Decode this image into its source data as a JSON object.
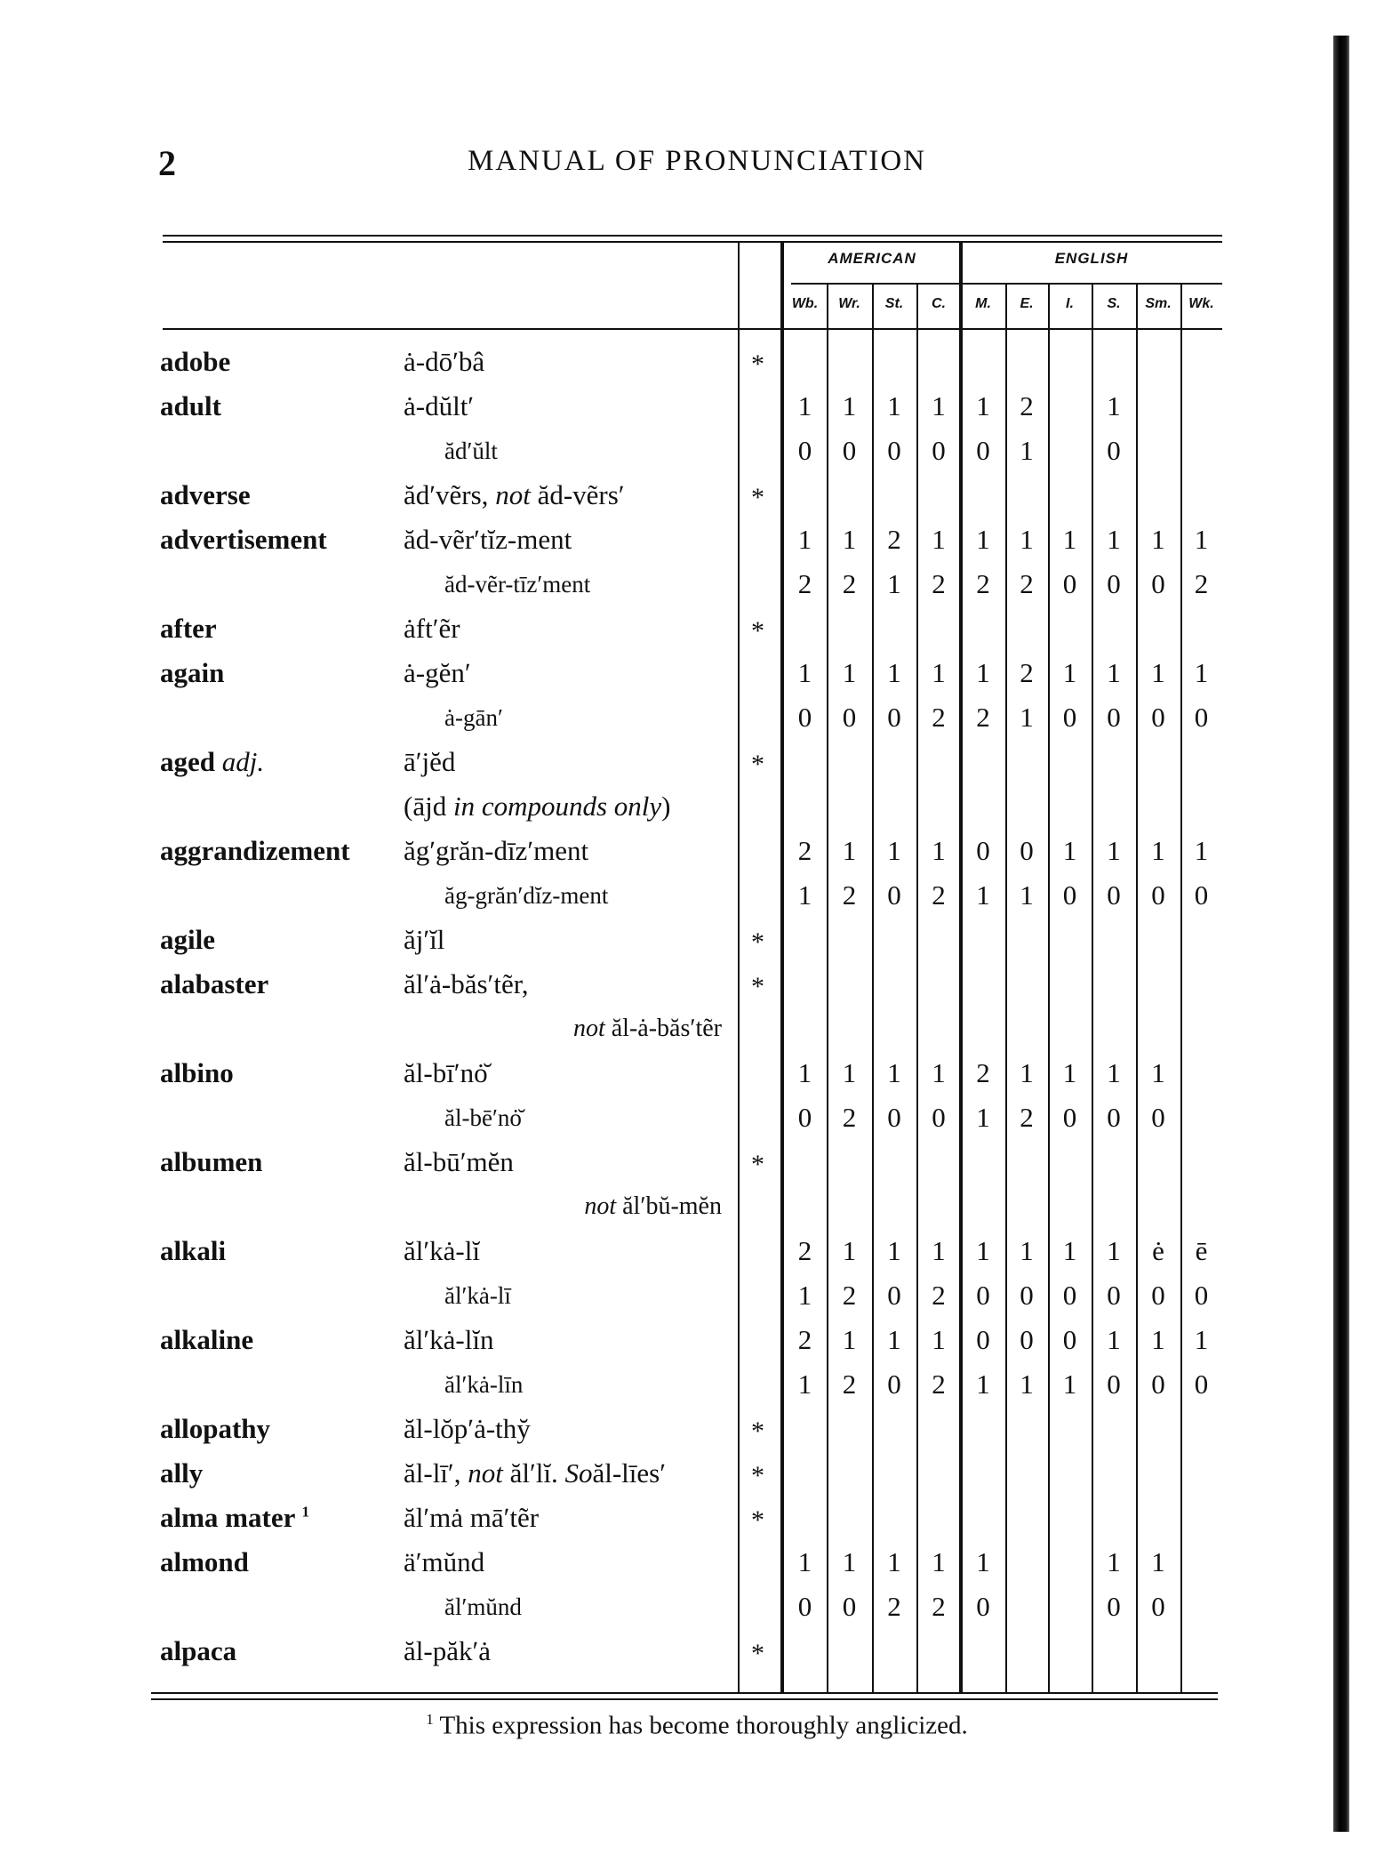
{
  "header": {
    "page_number": "2",
    "title": "MANUAL OF PRONUNCIATION"
  },
  "table": {
    "groups": [
      "AMERICAN",
      "ENGLISH"
    ],
    "columns": [
      "Wb.",
      "Wr.",
      "St.",
      "C.",
      "M.",
      "E.",
      "I.",
      "S.",
      "Sm.",
      "Wk."
    ],
    "rows": [
      {
        "headword": "adobe",
        "pron": [
          {
            "t": "ȧ-dōʹbâ"
          }
        ],
        "align": "main",
        "star": "*",
        "values": []
      },
      {
        "headword": "adult",
        "pron": [
          {
            "t": "ȧ-dŭltʹ"
          }
        ],
        "align": "main",
        "star": "",
        "values": [
          "1",
          "1",
          "1",
          "1",
          "1",
          "2",
          "",
          "1",
          "",
          ""
        ]
      },
      {
        "headword": "",
        "pron": [
          {
            "t": "ădʹŭlt"
          }
        ],
        "align": "variant",
        "star": "",
        "values": [
          "0",
          "0",
          "0",
          "0",
          "0",
          "1",
          "",
          "0",
          "",
          ""
        ]
      },
      {
        "headword": "adverse",
        "pron": [
          {
            "t": "ădʹvẽrs, "
          },
          {
            "t": "not",
            "i": true
          },
          {
            "t": " ăd-vẽrsʹ"
          }
        ],
        "align": "main",
        "star": "*",
        "values": []
      },
      {
        "headword": "advertisement",
        "pron": [
          {
            "t": "ăd-vẽrʹtĭz-ment"
          }
        ],
        "align": "main",
        "star": "",
        "values": [
          "1",
          "1",
          "2",
          "1",
          "1",
          "1",
          "1",
          "1",
          "1",
          "1"
        ]
      },
      {
        "headword": "",
        "pron": [
          {
            "t": "ăd-vẽr-tīzʹment"
          }
        ],
        "align": "variant",
        "star": "",
        "values": [
          "2",
          "2",
          "1",
          "2",
          "2",
          "2",
          "0",
          "0",
          "0",
          "2"
        ]
      },
      {
        "headword": "after",
        "pron": [
          {
            "t": "ȧftʹẽr"
          }
        ],
        "align": "main",
        "star": "*",
        "values": []
      },
      {
        "headword": "again",
        "pron": [
          {
            "t": "ȧ-gĕnʹ"
          }
        ],
        "align": "main",
        "star": "",
        "values": [
          "1",
          "1",
          "1",
          "1",
          "1",
          "2",
          "1",
          "1",
          "1",
          "1"
        ]
      },
      {
        "headword": "",
        "pron": [
          {
            "t": "ȧ-gānʹ"
          }
        ],
        "align": "variant",
        "star": "",
        "values": [
          "0",
          "0",
          "0",
          "2",
          "2",
          "1",
          "0",
          "0",
          "0",
          "0"
        ]
      },
      {
        "headword": "aged",
        "headword_note": "adj.",
        "pron": [
          {
            "t": "āʹjĕd"
          }
        ],
        "align": "main",
        "star": "*",
        "values": []
      },
      {
        "headword": "",
        "pron": [
          {
            "t": "(ājd "
          },
          {
            "t": "in compounds only",
            "i": true
          },
          {
            "t": ")"
          }
        ],
        "align": "main",
        "star": "",
        "values": []
      },
      {
        "headword": "aggrandizement",
        "pron": [
          {
            "t": "ăgʹgrăn-dīzʹment"
          }
        ],
        "align": "main",
        "star": "",
        "values": [
          "2",
          "1",
          "1",
          "1",
          "0",
          "0",
          "1",
          "1",
          "1",
          "1"
        ]
      },
      {
        "headword": "",
        "pron": [
          {
            "t": "ăg-grănʹdĭz-ment"
          }
        ],
        "align": "variant",
        "star": "",
        "values": [
          "1",
          "2",
          "0",
          "2",
          "1",
          "1",
          "0",
          "0",
          "0",
          "0"
        ]
      },
      {
        "headword": "agile",
        "pron": [
          {
            "t": "ăjʹĭl"
          }
        ],
        "align": "main",
        "star": "*",
        "values": []
      },
      {
        "headword": "alabaster",
        "pron": [
          {
            "t": "ălʹȧ-băsʹtẽr,"
          }
        ],
        "align": "main",
        "star": "*",
        "values": []
      },
      {
        "headword": "",
        "pron": [
          {
            "t": "not",
            "i": true
          },
          {
            "t": " ăl-ȧ-băsʹtẽr"
          }
        ],
        "align": "right",
        "star": "",
        "values": []
      },
      {
        "headword": "albino",
        "pron": [
          {
            "t": "ăl-bīʹnȯ̆"
          }
        ],
        "align": "main",
        "star": "",
        "values": [
          "1",
          "1",
          "1",
          "1",
          "2",
          "1",
          "1",
          "1",
          "1",
          ""
        ]
      },
      {
        "headword": "",
        "pron": [
          {
            "t": "ăl-bēʹnȯ̆"
          }
        ],
        "align": "variant",
        "star": "",
        "values": [
          "0",
          "2",
          "0",
          "0",
          "1",
          "2",
          "0",
          "0",
          "0",
          ""
        ]
      },
      {
        "headword": "albumen",
        "pron": [
          {
            "t": "ăl-būʹmĕn"
          }
        ],
        "align": "main",
        "star": "*",
        "values": []
      },
      {
        "headword": "",
        "pron": [
          {
            "t": "not",
            "i": true
          },
          {
            "t": " ălʹbŭ-mĕn"
          }
        ],
        "align": "right",
        "star": "",
        "values": []
      },
      {
        "headword": "alkali",
        "pron": [
          {
            "t": "ălʹkȧ-lĭ"
          }
        ],
        "align": "main",
        "star": "",
        "values": [
          "2",
          "1",
          "1",
          "1",
          "1",
          "1",
          "1",
          "1",
          "ė",
          "ē"
        ]
      },
      {
        "headword": "",
        "pron": [
          {
            "t": "ălʹkȧ-lī"
          }
        ],
        "align": "variant",
        "star": "",
        "values": [
          "1",
          "2",
          "0",
          "2",
          "0",
          "0",
          "0",
          "0",
          "0",
          "0"
        ]
      },
      {
        "headword": "alkaline",
        "pron": [
          {
            "t": "ălʹkȧ-lĭn"
          }
        ],
        "align": "main",
        "star": "",
        "values": [
          "2",
          "1",
          "1",
          "1",
          "0",
          "0",
          "0",
          "1",
          "1",
          "1"
        ]
      },
      {
        "headword": "",
        "pron": [
          {
            "t": "ălʹkȧ-līn"
          }
        ],
        "align": "variant",
        "star": "",
        "values": [
          "1",
          "2",
          "0",
          "2",
          "1",
          "1",
          "1",
          "0",
          "0",
          "0"
        ]
      },
      {
        "headword": "allopathy",
        "pron": [
          {
            "t": "ăl-lŏpʹȧ-thy̆"
          }
        ],
        "align": "main",
        "star": "*",
        "values": []
      },
      {
        "headword": "ally",
        "pron": [
          {
            "t": "ăl-līʹ, "
          },
          {
            "t": "not",
            "i": true
          },
          {
            "t": " ălʹlĭ. "
          },
          {
            "t": "So",
            "i": true
          },
          {
            "t": "ăl-līesʹ"
          }
        ],
        "align": "main",
        "star": "*",
        "values": []
      },
      {
        "headword": "alma mater",
        "headword_sup": "1",
        "pron": [
          {
            "t": "ălʹmȧ māʹtẽr"
          }
        ],
        "align": "main",
        "star": "*",
        "values": []
      },
      {
        "headword": "almond",
        "pron": [
          {
            "t": "äʹmŭnd"
          }
        ],
        "align": "main",
        "star": "",
        "values": [
          "1",
          "1",
          "1",
          "1",
          "1",
          "",
          "",
          "1",
          "1",
          ""
        ]
      },
      {
        "headword": "",
        "pron": [
          {
            "t": "ălʹmŭnd"
          }
        ],
        "align": "variant",
        "star": "",
        "values": [
          "0",
          "0",
          "2",
          "2",
          "0",
          "",
          "",
          "0",
          "0",
          ""
        ]
      },
      {
        "headword": "alpaca",
        "pron": [
          {
            "t": "ăl-păkʹȧ"
          }
        ],
        "align": "main",
        "star": "*",
        "values": []
      }
    ]
  },
  "footnote": {
    "marker": "1",
    "text": "This expression has become thoroughly anglicized."
  }
}
